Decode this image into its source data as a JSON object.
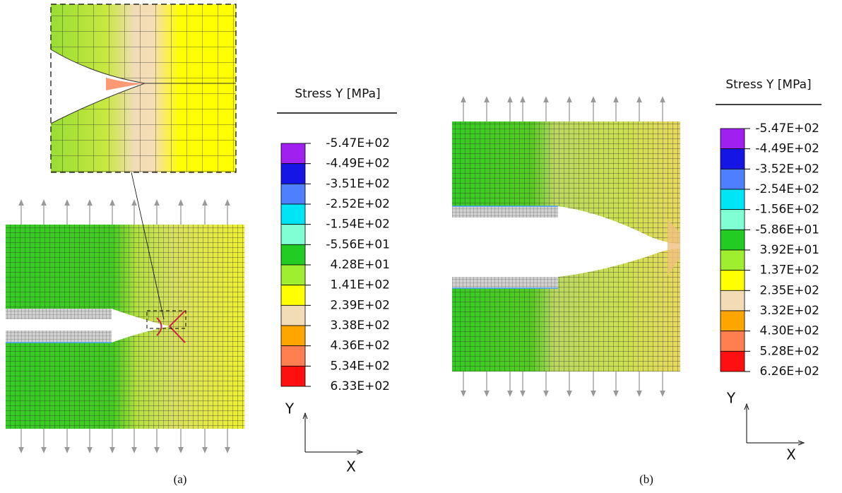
{
  "panels": [
    {
      "label": "(a)",
      "legend": {
        "title": "Stress Y [MPa]",
        "labels": [
          "-5.47E+02",
          "-4.49E+02",
          "-3.51E+02",
          "-2.52E+02",
          "-1.54E+02",
          "-5.56E+01",
          "4.28E+01",
          "1.41E+02",
          "2.39E+02",
          "3.38E+02",
          "4.36E+02",
          "5.34E+02",
          "6.33E+02"
        ]
      },
      "axes": {
        "y": "Y",
        "x": "X"
      }
    },
    {
      "label": "(b)",
      "legend": {
        "title": "Stress Y [MPa]",
        "labels": [
          "-5.47E+02",
          "-4.49E+02",
          "-3.52E+02",
          "-2.54E+02",
          "-1.56E+02",
          "-5.86E+01",
          "3.92E+01",
          "1.37E+02",
          "2.35E+02",
          "3.32E+02",
          "4.30E+02",
          "5.28E+02",
          "6.26E+02"
        ]
      },
      "axes": {
        "y": "Y",
        "x": "X"
      }
    }
  ],
  "colors": [
    "#a020f0",
    "#1515e6",
    "#4d7fff",
    "#00e5f5",
    "#80ffd4",
    "#22cc22",
    "#a0ee30",
    "#ffff00",
    "#f2dcb5",
    "#ffa500",
    "#ff7f50",
    "#ff1010"
  ]
}
